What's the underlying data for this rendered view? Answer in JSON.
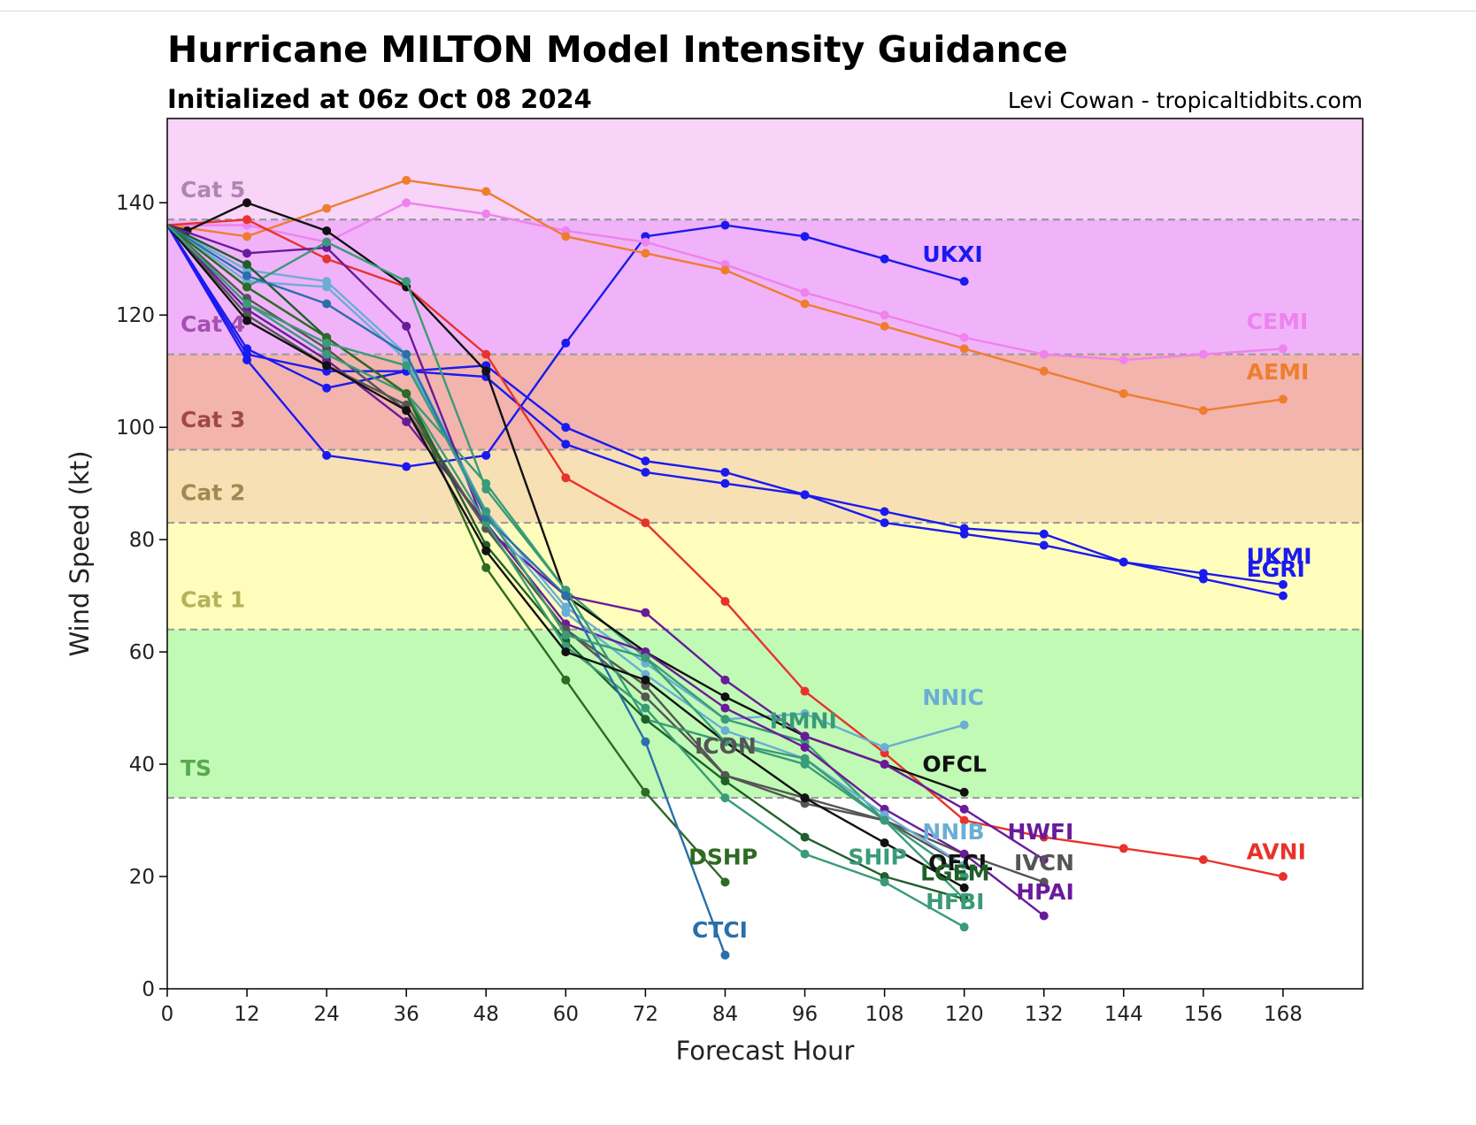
{
  "chart_data": {
    "type": "line",
    "title": "Hurricane MILTON Model Intensity Guidance",
    "subtitle": "Initialized at 06z Oct 08 2024",
    "credit": "Levi Cowan - tropicaltidbits.com",
    "xlabel": "Forecast Hour",
    "ylabel": "Wind Speed (kt)",
    "xlim": [
      0,
      180
    ],
    "ylim": [
      0,
      155
    ],
    "xticks": [
      0,
      12,
      24,
      36,
      48,
      60,
      72,
      84,
      96,
      108,
      120,
      132,
      144,
      156,
      168
    ],
    "yticks": [
      0,
      20,
      40,
      60,
      80,
      100,
      120,
      140
    ],
    "grid": false,
    "bands": [
      {
        "label": "TS",
        "from": 34,
        "to": 64,
        "color": "#c0fab5",
        "text_color": "#5aa84f"
      },
      {
        "label": "Cat 1",
        "from": 64,
        "to": 83,
        "color": "#fffdbb",
        "text_color": "#b4b35a"
      },
      {
        "label": "Cat 2",
        "from": 83,
        "to": 96,
        "color": "#f8e0b5",
        "text_color": "#a28851"
      },
      {
        "label": "Cat 3",
        "from": 96,
        "to": 113,
        "color": "#f2b4ad",
        "text_color": "#a14a45"
      },
      {
        "label": "Cat 4",
        "from": 113,
        "to": 137,
        "color": "#f0b3f9",
        "text_color": "#a450b0"
      },
      {
        "label": "Cat 5",
        "from": 137,
        "to": 155,
        "color": "#f8d4f8",
        "text_color": "#b086b0"
      }
    ],
    "series": [
      {
        "name": "UKXI",
        "color": "#1a1af0",
        "x": [
          0,
          12,
          24,
          36,
          48,
          60,
          72,
          84,
          96,
          108,
          120
        ],
        "y": [
          136,
          112,
          95,
          93,
          95,
          115,
          134,
          136,
          134,
          130,
          126
        ]
      },
      {
        "name": "CEMI",
        "color": "#ee82ee",
        "x": [
          0,
          12,
          24,
          36,
          48,
          60,
          72,
          84,
          96,
          108,
          120,
          132,
          144,
          156,
          168
        ],
        "y": [
          136,
          136,
          133,
          140,
          138,
          135,
          133,
          129,
          124,
          120,
          116,
          113,
          112,
          113,
          114
        ]
      },
      {
        "name": "AEMI",
        "color": "#ef7d30",
        "x": [
          0,
          12,
          24,
          36,
          48,
          60,
          72,
          84,
          96,
          108,
          120,
          132,
          144,
          156,
          168
        ],
        "y": [
          136,
          134,
          139,
          144,
          142,
          134,
          131,
          128,
          122,
          118,
          114,
          110,
          106,
          103,
          105
        ]
      },
      {
        "name": "UKMI",
        "color": "#1a1af0",
        "x": [
          0,
          12,
          24,
          36,
          48,
          60,
          72,
          84,
          96,
          108,
          120,
          132,
          144,
          156,
          168
        ],
        "y": [
          136,
          113,
          110,
          110,
          111,
          100,
          94,
          92,
          88,
          85,
          82,
          81,
          76,
          74,
          72
        ]
      },
      {
        "name": "EGRI",
        "color": "#1a1af0",
        "x": [
          0,
          12,
          24,
          36,
          48,
          60,
          72,
          84,
          96,
          108,
          120,
          132,
          144,
          156,
          168
        ],
        "y": [
          136,
          114,
          107,
          110,
          109,
          97,
          92,
          90,
          88,
          83,
          81,
          79,
          76,
          73,
          70
        ]
      },
      {
        "name": "AVNI",
        "color": "#e8332a",
        "x": [
          0,
          12,
          24,
          36,
          48,
          60,
          72,
          84,
          96,
          108,
          120,
          132,
          144,
          156,
          168
        ],
        "y": [
          136,
          137,
          130,
          125,
          113,
          91,
          83,
          69,
          53,
          42,
          30,
          27,
          25,
          23,
          20
        ]
      },
      {
        "name": "NNIC",
        "color": "#6aaed6",
        "x": [
          0,
          12,
          24,
          36,
          48,
          60,
          72,
          84,
          96,
          108,
          120
        ],
        "y": [
          136,
          128,
          126,
          113,
          85,
          68,
          58,
          48,
          49,
          43,
          47
        ]
      },
      {
        "name": "HMNI",
        "color": "#3a9b78",
        "x": [
          0,
          12,
          24,
          36,
          48,
          60,
          72,
          84,
          96,
          108,
          120
        ],
        "y": [
          136,
          125,
          116,
          106,
          90,
          71,
          59,
          48,
          44,
          30,
          16
        ]
      },
      {
        "name": "OFCL",
        "color": "#111111",
        "x": [
          0,
          3,
          12,
          24,
          36,
          48,
          60,
          72,
          84,
          96,
          108,
          120
        ],
        "y": [
          136,
          135,
          140,
          135,
          125,
          110,
          70,
          60,
          52,
          45,
          40,
          35
        ]
      },
      {
        "name": "ICON",
        "color": "#555555",
        "x": [
          0,
          12,
          24,
          36,
          48,
          60,
          72,
          84,
          96,
          108,
          120,
          132
        ],
        "y": [
          136,
          123,
          114,
          103,
          82,
          64,
          52,
          38,
          33,
          30,
          24,
          19
        ]
      },
      {
        "name": "HWFI",
        "color": "#6a1b9a",
        "x": [
          0,
          12,
          24,
          36,
          48,
          60,
          72,
          84,
          96,
          108,
          120,
          132
        ],
        "y": [
          136,
          131,
          132,
          118,
          82,
          70,
          67,
          55,
          45,
          40,
          32,
          23
        ]
      },
      {
        "name": "HPAI",
        "color": "#6a1b9a",
        "x": [
          0,
          12,
          24,
          36,
          48,
          60,
          72,
          84,
          96,
          108,
          120,
          132
        ],
        "y": [
          136,
          121,
          112,
          101,
          83,
          65,
          60,
          50,
          43,
          32,
          24,
          13
        ]
      },
      {
        "name": "IVCN",
        "color": "#555555",
        "x": [
          0,
          12,
          24,
          36,
          48,
          60,
          72,
          84,
          96,
          108,
          120
        ],
        "y": [
          136,
          120,
          111,
          104,
          82,
          64,
          54,
          38,
          34,
          30,
          22
        ]
      },
      {
        "name": "NNIB",
        "color": "#6aaed6",
        "x": [
          0,
          12,
          24,
          36,
          48,
          60,
          72,
          84,
          96,
          108,
          120
        ],
        "y": [
          136,
          126,
          125,
          112,
          84,
          67,
          56,
          46,
          41,
          31,
          22
        ]
      },
      {
        "name": "SHIP",
        "color": "#3a9b78",
        "x": [
          0,
          12,
          24,
          36,
          48,
          60,
          72,
          84,
          96,
          108,
          120
        ],
        "y": [
          136,
          125,
          133,
          126,
          89,
          71,
          48,
          44,
          40,
          30,
          20
        ]
      },
      {
        "name": "LGEM",
        "color": "#1f5f2a",
        "x": [
          0,
          12,
          24,
          36,
          48,
          60,
          72,
          84,
          96,
          108,
          120
        ],
        "y": [
          136,
          129,
          116,
          106,
          79,
          62,
          48,
          37,
          27,
          20,
          16
        ]
      },
      {
        "name": "HFBI",
        "color": "#3a9b78",
        "x": [
          0,
          12,
          24,
          36,
          48,
          60,
          72,
          84,
          96,
          108,
          120
        ],
        "y": [
          136,
          122,
          113,
          106,
          83,
          61,
          50,
          34,
          24,
          19,
          11
        ]
      },
      {
        "name": "DSHP",
        "color": "#2e6b23",
        "x": [
          0,
          12,
          24,
          36,
          48,
          60,
          72,
          84
        ],
        "y": [
          136,
          125,
          116,
          106,
          75,
          55,
          35,
          19
        ]
      },
      {
        "name": "CTCI",
        "color": "#2a6fa8",
        "x": [
          0,
          12,
          24,
          36,
          48,
          60,
          72,
          84
        ],
        "y": [
          136,
          127,
          122,
          113,
          84,
          70,
          44,
          6
        ]
      },
      {
        "name": "OFCL",
        "color": "#111111",
        "x": [
          0,
          12,
          24,
          36,
          48,
          60,
          72,
          84,
          96,
          108,
          120
        ],
        "y": [
          136,
          119,
          111,
          103,
          78,
          60,
          55,
          44,
          34,
          26,
          18
        ]
      },
      {
        "name": "HMNI",
        "color": "#3a9b78",
        "x": [
          0,
          12,
          24,
          36,
          48,
          60,
          72,
          84,
          96,
          108
        ],
        "y": [
          136,
          122,
          115,
          111,
          85,
          63,
          59,
          44,
          41,
          30
        ]
      }
    ],
    "labels": [
      {
        "text": "UKXI",
        "x": 113.7,
        "y": 129.5,
        "color": "#1a1af0"
      },
      {
        "text": "CEMI",
        "x": 162.5,
        "y": 117.5,
        "color": "#ee82ee"
      },
      {
        "text": "AEMI",
        "x": 162.5,
        "y": 108.5,
        "color": "#ef7d30"
      },
      {
        "text": "UKMI",
        "x": 162.5,
        "y": 75.7,
        "color": "#1a1af0"
      },
      {
        "text": "EGRI",
        "x": 162.5,
        "y": 73.4,
        "color": "#1a1af0"
      },
      {
        "text": "AVNI",
        "x": 162.5,
        "y": 23.1,
        "color": "#e8332a"
      },
      {
        "text": "NNIC",
        "x": 113.7,
        "y": 50.6,
        "color": "#6aaed6"
      },
      {
        "text": "HMNI",
        "x": 90.7,
        "y": 46.4,
        "color": "#3a9b78"
      },
      {
        "text": "OFCL",
        "x": 113.7,
        "y": 38.7,
        "color": "#111111"
      },
      {
        "text": "ICON",
        "x": 79.4,
        "y": 41.9,
        "color": "#555555"
      },
      {
        "text": "NNIB",
        "x": 113.7,
        "y": 26.6,
        "color": "#6aaed6"
      },
      {
        "text": "HWFI",
        "x": 126.5,
        "y": 26.6,
        "color": "#6a1b9a"
      },
      {
        "text": "DSHP",
        "x": 78.5,
        "y": 22.1,
        "color": "#2e6b23"
      },
      {
        "text": "SHIP",
        "x": 102.5,
        "y": 22.1,
        "color": "#3a9b78"
      },
      {
        "text": "OFCL",
        "x": 114.6,
        "y": 21.1,
        "color": "#111111"
      },
      {
        "text": "IVCN",
        "x": 127.5,
        "y": 21.1,
        "color": "#555555"
      },
      {
        "text": "LGEM",
        "x": 113.4,
        "y": 19.3,
        "color": "#1f5f2a"
      },
      {
        "text": "HPAI",
        "x": 127.8,
        "y": 15.9,
        "color": "#6a1b9a"
      },
      {
        "text": "HFBI",
        "x": 114.2,
        "y": 14.2,
        "color": "#3a9b78"
      },
      {
        "text": "CTCI",
        "x": 79.0,
        "y": 9.1,
        "color": "#2a6fa8"
      }
    ]
  }
}
